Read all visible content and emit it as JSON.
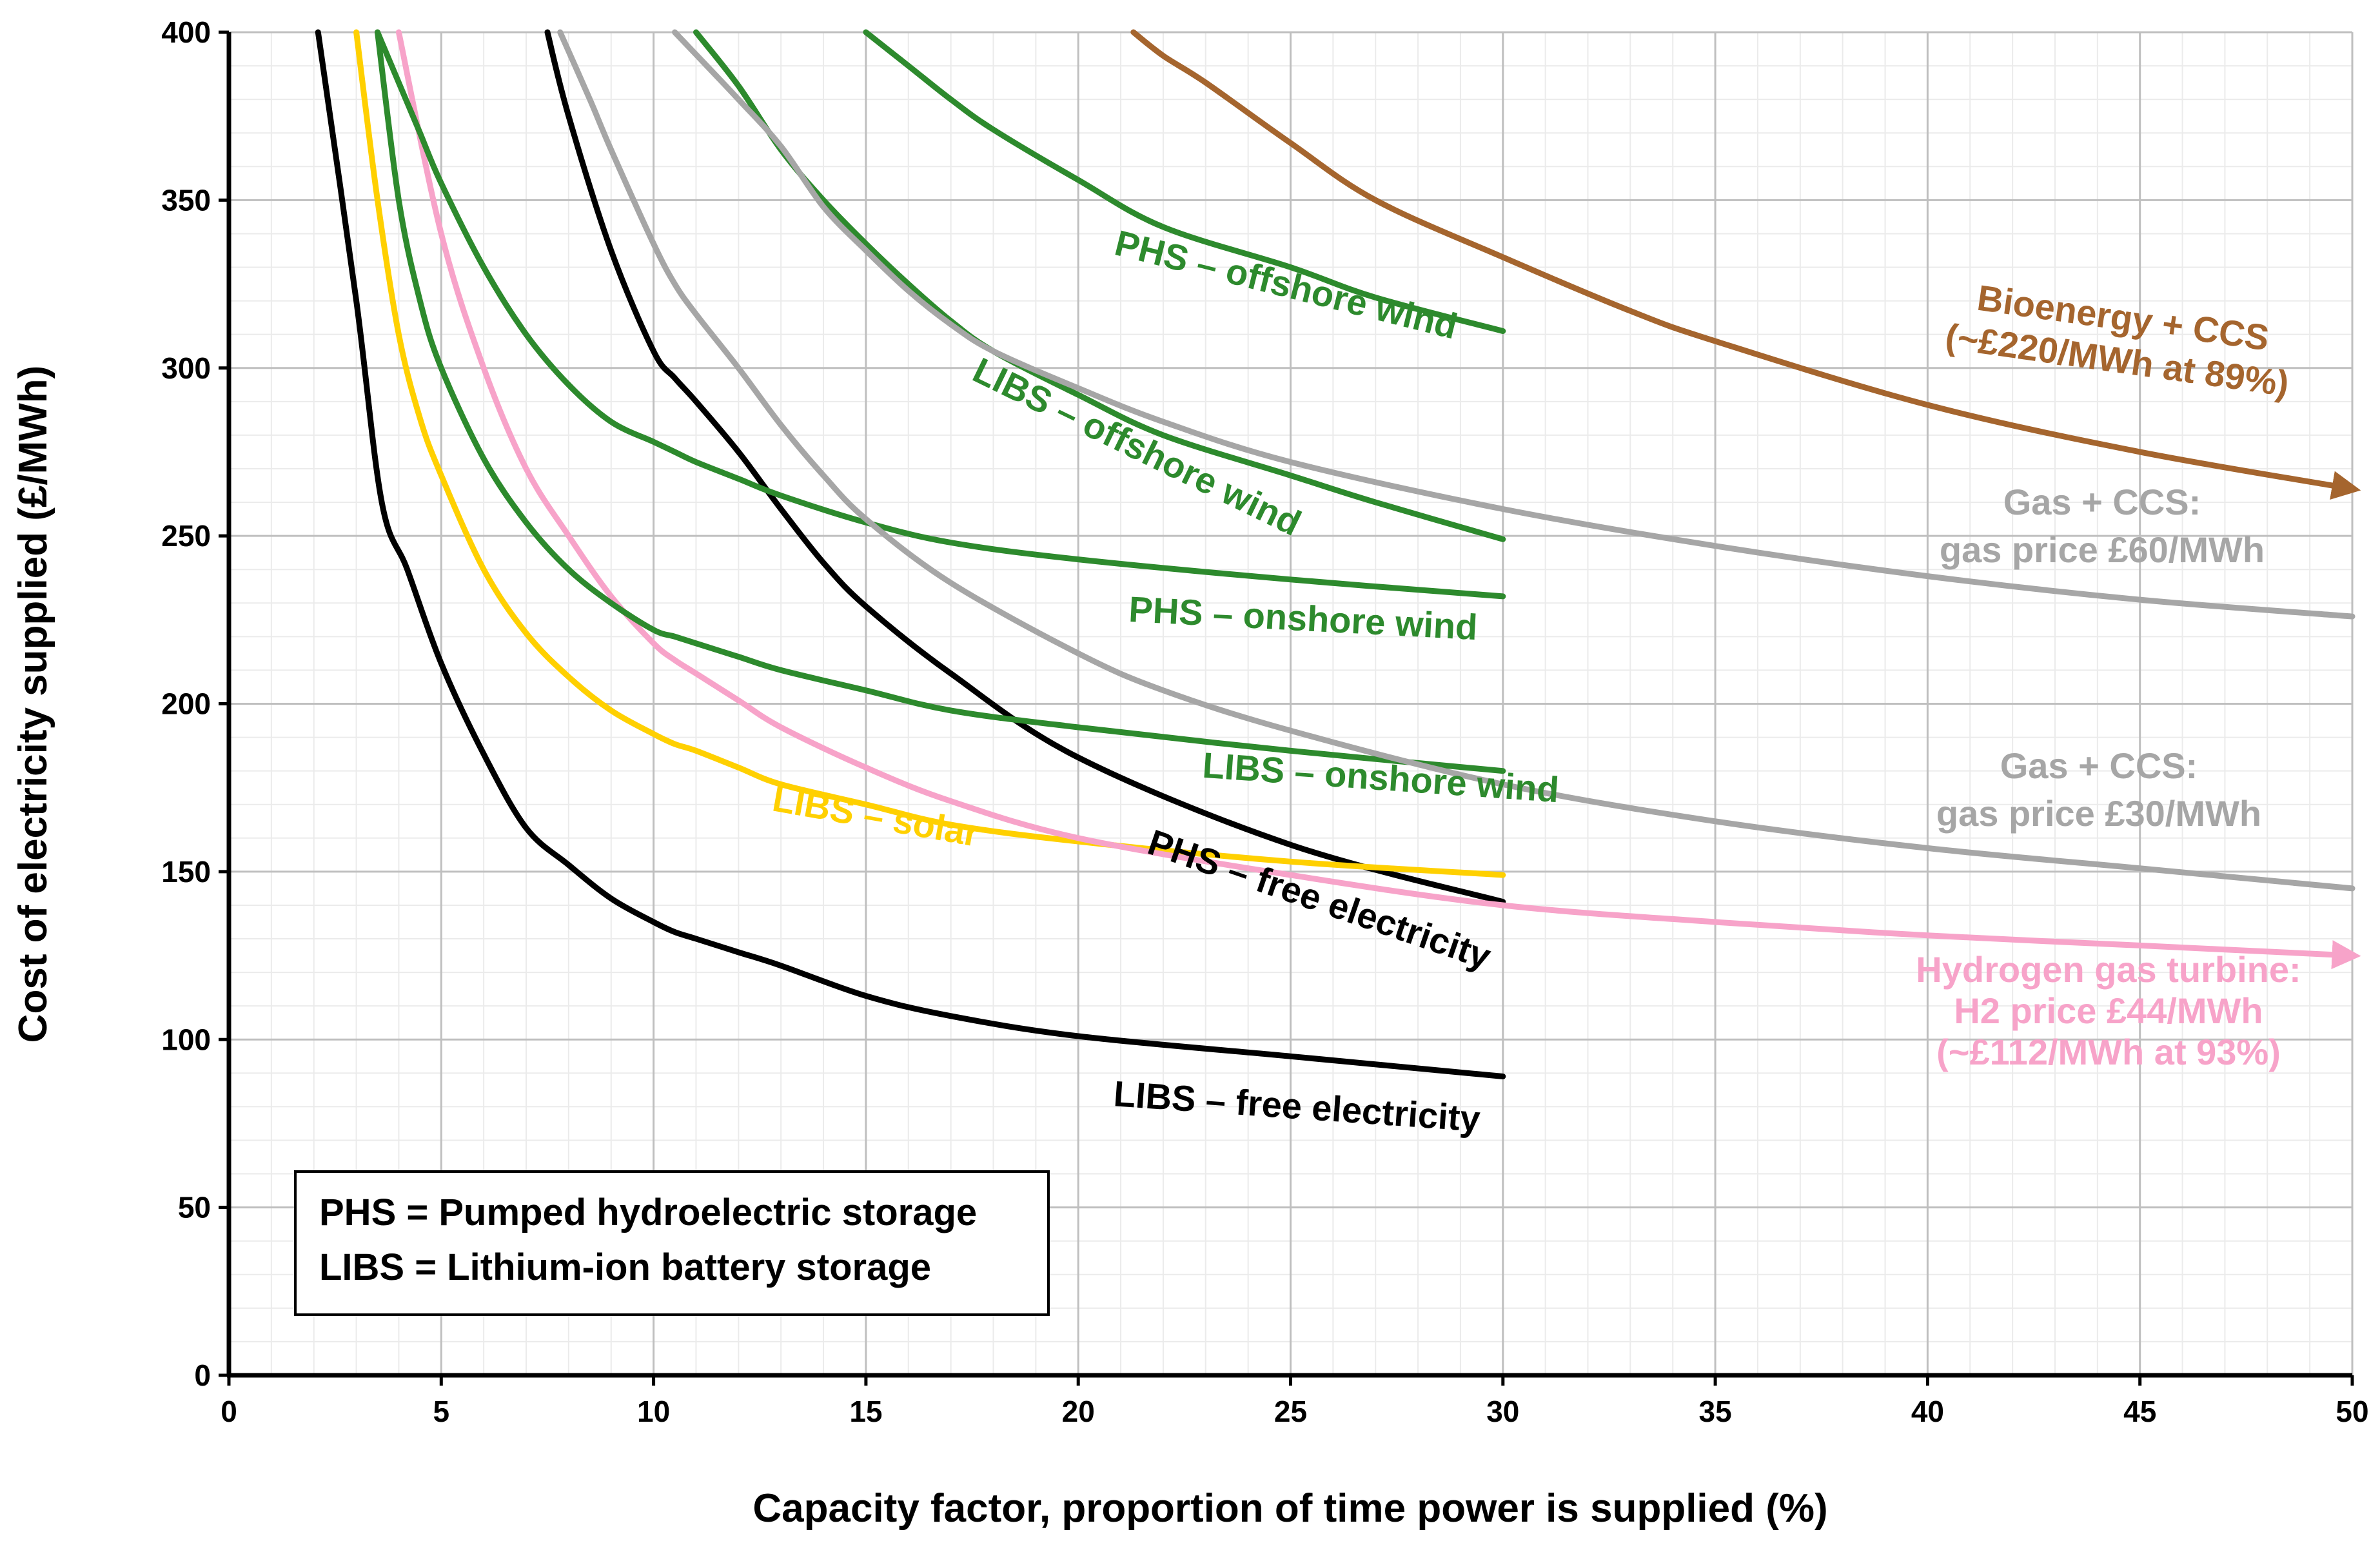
{
  "chart_data": {
    "type": "line",
    "xlabel": "Capacity factor, proportion of time power is supplied (%)",
    "ylabel": "Cost of electricity supplied (£/MWh)",
    "xlim": [
      0,
      50
    ],
    "ylim": [
      0,
      400
    ],
    "xticks": [
      "0",
      "5",
      "10",
      "15",
      "20",
      "25",
      "30",
      "35",
      "40",
      "45",
      "50"
    ],
    "yticks": [
      "0",
      "50",
      "100",
      "150",
      "200",
      "250",
      "300",
      "350",
      "400"
    ],
    "grid": true,
    "legend": {
      "placement": "bottom-left",
      "lines": [
        "PHS = Pumped hydroelectric storage",
        "LIBS = Lithium-ion battery storage"
      ]
    },
    "series": [
      {
        "name": "LIBS – free electricity",
        "color": "#000000",
        "label_lines": [
          "LIBS – free electricity"
        ],
        "x": [
          2.1,
          3,
          3.6,
          4.2,
          5,
          6,
          7,
          8,
          9,
          10,
          10.5,
          11,
          12,
          13,
          15,
          17,
          20,
          25,
          30
        ],
        "y": [
          400,
          320,
          260,
          240,
          212,
          185,
          163,
          152,
          142,
          135,
          132,
          130,
          126,
          122,
          113,
          107,
          101,
          95,
          89
        ]
      },
      {
        "name": "PHS – free electricity",
        "color": "#000000",
        "label_lines": [
          "PHS – free electricity"
        ],
        "x": [
          7.5,
          8,
          9,
          10,
          10.5,
          11,
          12,
          13,
          14,
          15,
          17,
          20,
          25,
          30
        ],
        "y": [
          400,
          375,
          335,
          305,
          297,
          290,
          275,
          258,
          242,
          229,
          209,
          184,
          158,
          141
        ]
      },
      {
        "name": "LIBS – solar",
        "color": "#FFD000",
        "label_lines": [
          "LIBS – solar"
        ],
        "x": [
          3,
          3.5,
          4,
          4.5,
          5,
          6,
          7,
          8,
          9,
          10,
          10.5,
          11,
          12,
          13,
          15,
          17,
          20,
          25,
          30
        ],
        "y": [
          400,
          350,
          310,
          285,
          268,
          240,
          221,
          208,
          198,
          191,
          188,
          186,
          181,
          176,
          170,
          164,
          159,
          153,
          149
        ]
      },
      {
        "name": "Hydrogen gas turbine: H2 price £44/MWh",
        "color": "#F7A3C9",
        "label_lines": [
          "Hydrogen gas turbine:",
          "H2 price £44/MWh",
          "(~£112/MWh at 93%)"
        ],
        "x": [
          4,
          5,
          6,
          7,
          8,
          9,
          10,
          10.5,
          11,
          12,
          13,
          15,
          17,
          20,
          25,
          30,
          35,
          40,
          45,
          50
        ],
        "y": [
          400,
          340,
          300,
          270,
          250,
          232,
          218,
          213,
          209,
          201,
          193,
          181,
          171,
          160,
          149,
          140,
          135,
          131,
          128,
          125
        ]
      },
      {
        "name": "LIBS – onshore wind",
        "color": "#2D8A2D",
        "label_lines": [
          "LIBS – onshore wind"
        ],
        "x": [
          3.5,
          4,
          4.5,
          5,
          6,
          7,
          8,
          9,
          10,
          10.5,
          11,
          12,
          13,
          15,
          17,
          20,
          25,
          30
        ],
        "y": [
          400,
          350,
          320,
          300,
          273,
          254,
          240,
          230,
          222,
          220,
          218,
          214,
          210,
          204,
          198,
          193,
          186,
          180
        ]
      },
      {
        "name": "PHS – onshore wind",
        "color": "#2D8A2D",
        "label_lines": [
          "PHS – onshore wind"
        ],
        "x": [
          3.5,
          4,
          4.5,
          5,
          6,
          7,
          8,
          9,
          10,
          10.5,
          11,
          12,
          13,
          15,
          17,
          20,
          25,
          30
        ],
        "y": [
          400,
          385,
          370,
          355,
          330,
          310,
          295,
          284,
          278,
          275,
          272,
          267,
          262,
          254,
          248,
          243,
          237,
          232
        ]
      },
      {
        "name": "LIBS – offshore wind",
        "color": "#2D8A2D",
        "label_lines": [
          "LIBS – offshore wind"
        ],
        "x": [
          11,
          12,
          13,
          14,
          15,
          16,
          17,
          18,
          20,
          22,
          25,
          27,
          30
        ],
        "y": [
          400,
          384,
          365,
          350,
          337,
          325,
          314,
          305,
          292,
          280,
          268,
          260,
          249
        ]
      },
      {
        "name": "PHS – offshore wind",
        "color": "#2D8A2D",
        "label_lines": [
          "PHS – offshore wind"
        ],
        "x": [
          15,
          16,
          17,
          18,
          20,
          22,
          25,
          27,
          30
        ],
        "y": [
          400,
          390,
          380,
          371,
          356,
          342,
          330,
          321,
          311
        ]
      },
      {
        "name": "Gas + CCS: gas price £30/MWh",
        "color": "#A6A6A6",
        "label_lines": [
          "Gas + CCS:",
          "gas price £30/MWh"
        ],
        "x": [
          7.8,
          8.5,
          9,
          10,
          10.5,
          11,
          12,
          13,
          14,
          15,
          17,
          20,
          22,
          25,
          30,
          35,
          40,
          45,
          50
        ],
        "y": [
          400,
          380,
          365,
          337,
          325,
          316,
          300,
          283,
          268,
          255,
          236,
          215,
          204,
          192,
          176,
          165,
          157,
          151,
          145
        ]
      },
      {
        "name": "Gas + CCS: gas price £60/MWh",
        "color": "#A6A6A6",
        "label_lines": [
          "Gas + CCS:",
          "gas price £60/MWh"
        ],
        "x": [
          10.5,
          12,
          13,
          14,
          15,
          16,
          17,
          18,
          20,
          22,
          25,
          30,
          35,
          40,
          45,
          50
        ],
        "y": [
          400,
          380,
          366,
          348,
          335,
          323,
          313,
          305,
          294,
          284,
          272,
          258,
          247,
          238,
          231,
          226
        ]
      },
      {
        "name": "Bioenergy + CCS",
        "color": "#A5652E",
        "label_lines": [
          "Bioenergy + CCS",
          "(~£220/MWh at 89%)"
        ],
        "x": [
          21.3,
          22,
          23,
          25,
          27,
          30,
          33,
          35,
          40,
          45,
          50
        ],
        "y": [
          400,
          393,
          385,
          367,
          350,
          333,
          317,
          308,
          289,
          275,
          264
        ]
      }
    ]
  }
}
